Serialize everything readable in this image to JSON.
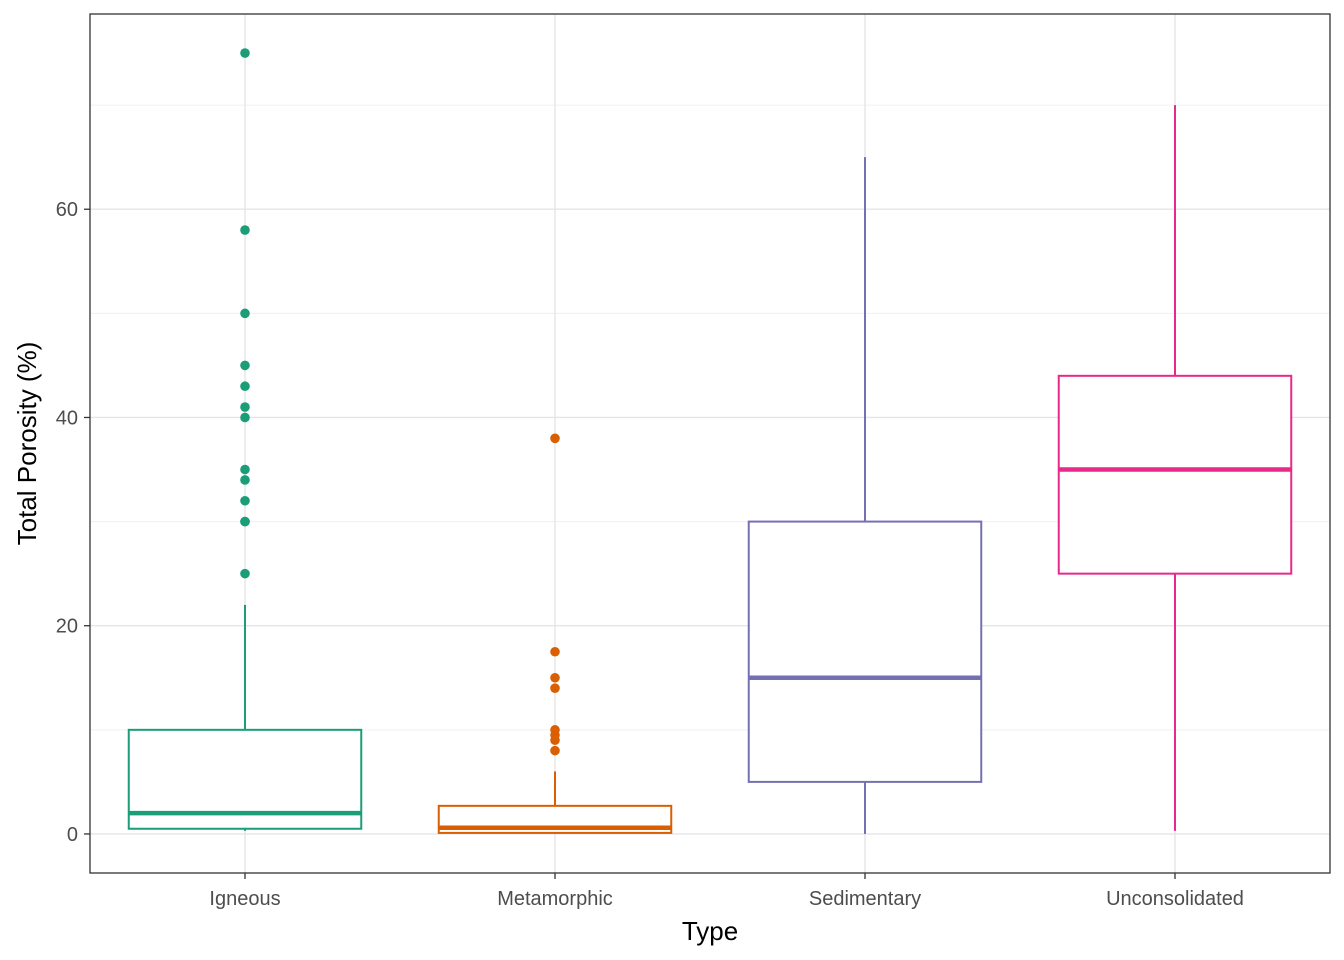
{
  "chart_data": {
    "type": "boxplot",
    "title": "",
    "xlabel": "Type",
    "ylabel": "Total Porosity (%)",
    "ylim": [
      -3.75,
      78.75
    ],
    "yticks": [
      0,
      20,
      40,
      60
    ],
    "grid": true,
    "legend": "none",
    "categories": [
      "Igneous",
      "Metamorphic",
      "Sedimentary",
      "Unconsolidated"
    ],
    "series": [
      {
        "category": "Igneous",
        "color": "#1b9e77",
        "min": 0.3,
        "q1": 0.5,
        "median": 2,
        "q3": 10,
        "max": 22,
        "outliers": [
          25,
          30,
          30,
          32,
          34,
          35,
          40,
          41,
          43,
          45,
          50,
          58,
          75
        ]
      },
      {
        "category": "Metamorphic",
        "color": "#d95f02",
        "min": 0,
        "q1": 0.1,
        "median": 0.6,
        "q3": 2.7,
        "max": 6,
        "outliers": [
          8,
          9,
          9.5,
          10,
          14,
          15,
          17.5,
          38
        ]
      },
      {
        "category": "Sedimentary",
        "color": "#7570b3",
        "min": 0,
        "q1": 5,
        "median": 15,
        "q3": 30,
        "max": 65,
        "outliers": []
      },
      {
        "category": "Unconsolidated",
        "color": "#e7298a",
        "min": 0.3,
        "q1": 25,
        "median": 35,
        "q3": 44,
        "max": 70,
        "outliers": []
      }
    ]
  }
}
